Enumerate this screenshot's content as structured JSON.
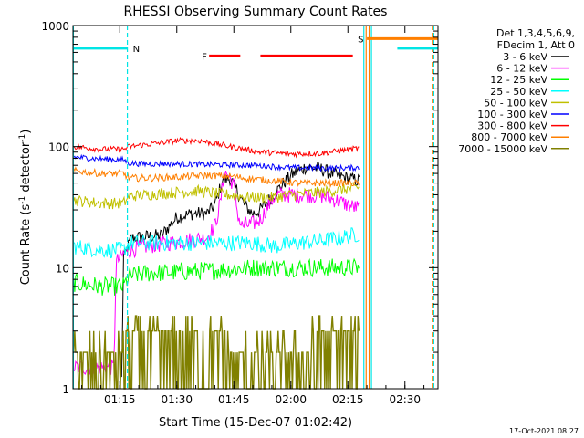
{
  "chart_data": {
    "type": "line",
    "title": "RHESSI Observing Summary Count Rates",
    "xlabel": "Start Time (15-Dec-07 01:02:42)",
    "ylabel_main": "Count Rate (s",
    "ylabel_sup1": "-1",
    "ylabel_mid": " detector",
    "ylabel_sup2": "-1",
    "ylabel_end": ")",
    "yscale": "log",
    "ylim": [
      1,
      1000
    ],
    "xlim_minutes": [
      62.7,
      158.7
    ],
    "x_ticks": [
      {
        "label": "01:15",
        "minute": 75
      },
      {
        "label": "01:30",
        "minute": 90
      },
      {
        "label": "01:45",
        "minute": 105
      },
      {
        "label": "02:00",
        "minute": 120
      },
      {
        "label": "02:15",
        "minute": 135
      },
      {
        "label": "02:30",
        "minute": 150
      }
    ],
    "y_ticks": [
      {
        "label": "1",
        "value": 1
      },
      {
        "label": "10",
        "value": 10
      },
      {
        "label": "100",
        "value": 100
      },
      {
        "label": "1000",
        "value": 1000
      }
    ],
    "legend_title_lines": [
      "Det 1,3,4,5,6,9,",
      "FDecim 1, Att 0"
    ],
    "legend_position": "right",
    "timestamp": "17-Oct-2021 08:27",
    "flags": [
      {
        "label": "N",
        "color": "#00e5e5",
        "segments": [
          [
            62.7,
            77.0
          ],
          [
            148.0,
            158.7
          ]
        ],
        "level": 650
      },
      {
        "label": "S",
        "color": "#ff7f00",
        "segments": [
          [
            140.0,
            158.7
          ]
        ],
        "level": 780
      },
      {
        "label": "F",
        "color": "#ff0000",
        "segments": [
          [
            98.5,
            106.7
          ],
          [
            112.0,
            136.3
          ]
        ],
        "level": 560
      }
    ],
    "vertical_lines": [
      {
        "minute": 62.8,
        "color": "#00e5e5",
        "style": "solid"
      },
      {
        "minute": 77.0,
        "color": "#00e5e5",
        "style": "dashed"
      },
      {
        "minute": 139.2,
        "color": "#00e5e5",
        "style": "solid"
      },
      {
        "minute": 139.8,
        "color": "#ff7f00",
        "style": "solid"
      },
      {
        "minute": 140.6,
        "color": "#ff7f00",
        "style": "solid"
      },
      {
        "minute": 141.2,
        "color": "#00e5e5",
        "style": "solid"
      },
      {
        "minute": 157.2,
        "color": "#ff7f00",
        "style": "dashed"
      },
      {
        "minute": 157.6,
        "color": "#00e5e5",
        "style": "dashed"
      }
    ],
    "series": [
      {
        "name": "3 - 6 keV",
        "color": "#000000",
        "noise": 0.06,
        "points": [
          [
            75.5,
            1.2
          ],
          [
            76.0,
            12
          ],
          [
            78,
            17.5
          ],
          [
            82,
            18
          ],
          [
            86,
            18.5
          ],
          [
            88,
            22
          ],
          [
            90,
            26
          ],
          [
            94,
            28
          ],
          [
            98,
            28
          ],
          [
            100,
            33
          ],
          [
            102,
            52
          ],
          [
            104,
            55
          ],
          [
            106,
            42
          ],
          [
            108,
            32
          ],
          [
            110,
            28
          ],
          [
            112,
            30
          ],
          [
            116,
            42
          ],
          [
            120,
            58
          ],
          [
            124,
            68
          ],
          [
            128,
            65
          ],
          [
            132,
            58
          ],
          [
            135,
            55
          ],
          [
            138,
            52
          ]
        ]
      },
      {
        "name": "6 - 12 keV",
        "color": "#ff00ff",
        "noise": 0.07,
        "points": [
          [
            62.9,
            1.5
          ],
          [
            73.5,
            1.5
          ],
          [
            74.0,
            11
          ],
          [
            76,
            13
          ],
          [
            78,
            14
          ],
          [
            82,
            15
          ],
          [
            88,
            16
          ],
          [
            94,
            17
          ],
          [
            98,
            18
          ],
          [
            100,
            22
          ],
          [
            101.5,
            35
          ],
          [
            102.5,
            62
          ],
          [
            103.5,
            58
          ],
          [
            105,
            48
          ],
          [
            106,
            28
          ],
          [
            107,
            22
          ],
          [
            110,
            23
          ],
          [
            112,
            25
          ],
          [
            114,
            32
          ],
          [
            116,
            40
          ],
          [
            120,
            40
          ],
          [
            124,
            40
          ],
          [
            128,
            39
          ],
          [
            132,
            36
          ],
          [
            136,
            32
          ],
          [
            138,
            31
          ]
        ]
      },
      {
        "name": "12 - 25 keV",
        "color": "#00ff00",
        "noise": 0.08,
        "points": [
          [
            62.9,
            7.5
          ],
          [
            70,
            7
          ],
          [
            76,
            7
          ],
          [
            77.5,
            8.5
          ],
          [
            82,
            9
          ],
          [
            90,
            9.2
          ],
          [
            100,
            9.5
          ],
          [
            110,
            10
          ],
          [
            120,
            10
          ],
          [
            130,
            10
          ],
          [
            138,
            10
          ]
        ]
      },
      {
        "name": "25 - 50 keV",
        "color": "#00ffff",
        "noise": 0.07,
        "points": [
          [
            62.9,
            15
          ],
          [
            70,
            14
          ],
          [
            76,
            14
          ],
          [
            77.5,
            16
          ],
          [
            82,
            16
          ],
          [
            90,
            16
          ],
          [
            100,
            16
          ],
          [
            110,
            16
          ],
          [
            116,
            15
          ],
          [
            122,
            16
          ],
          [
            130,
            17
          ],
          [
            138,
            19
          ]
        ]
      },
      {
        "name": "50 - 100 keV",
        "color": "#c0c000",
        "noise": 0.05,
        "points": [
          [
            62.9,
            36
          ],
          [
            70,
            34
          ],
          [
            76,
            34
          ],
          [
            77.5,
            39
          ],
          [
            82,
            40
          ],
          [
            90,
            42
          ],
          [
            96,
            43
          ],
          [
            100,
            41
          ],
          [
            110,
            38
          ],
          [
            116,
            38
          ],
          [
            120,
            40
          ],
          [
            128,
            42
          ],
          [
            138,
            46
          ]
        ]
      },
      {
        "name": "100 - 300 keV",
        "color": "#0000ff",
        "noise": 0.025,
        "points": [
          [
            62.9,
            82
          ],
          [
            70,
            79
          ],
          [
            76,
            78
          ],
          [
            77.5,
            73
          ],
          [
            82,
            72
          ],
          [
            90,
            72
          ],
          [
            100,
            71
          ],
          [
            110,
            70
          ],
          [
            120,
            67
          ],
          [
            130,
            66
          ],
          [
            138,
            67
          ]
        ]
      },
      {
        "name": "300 - 800 keV",
        "color": "#ff0000",
        "noise": 0.025,
        "points": [
          [
            62.9,
            100
          ],
          [
            70,
            95
          ],
          [
            76,
            95
          ],
          [
            77.5,
            100
          ],
          [
            82,
            104
          ],
          [
            90,
            112
          ],
          [
            96,
            112
          ],
          [
            104,
            100
          ],
          [
            112,
            90
          ],
          [
            120,
            87
          ],
          [
            128,
            88
          ],
          [
            138,
            97
          ]
        ]
      },
      {
        "name": "800 - 7000 keV",
        "color": "#ff7f00",
        "noise": 0.03,
        "points": [
          [
            62.9,
            63
          ],
          [
            70,
            60
          ],
          [
            76,
            60
          ],
          [
            77.5,
            55
          ],
          [
            82,
            55
          ],
          [
            90,
            56
          ],
          [
            98,
            58
          ],
          [
            104,
            57
          ],
          [
            110,
            54
          ],
          [
            116,
            52
          ],
          [
            122,
            50
          ],
          [
            130,
            50
          ],
          [
            138,
            50
          ]
        ]
      },
      {
        "name": "7000 - 15000 keV",
        "color": "#808000",
        "noise": 0.0,
        "points": [
          [
            62.9,
            2
          ],
          [
            75.5,
            2
          ],
          [
            76.5,
            2.5
          ],
          [
            80,
            3
          ],
          [
            100,
            3
          ],
          [
            106,
            2
          ],
          [
            120,
            2
          ],
          [
            130,
            3
          ],
          [
            138,
            3
          ]
        ]
      }
    ]
  }
}
